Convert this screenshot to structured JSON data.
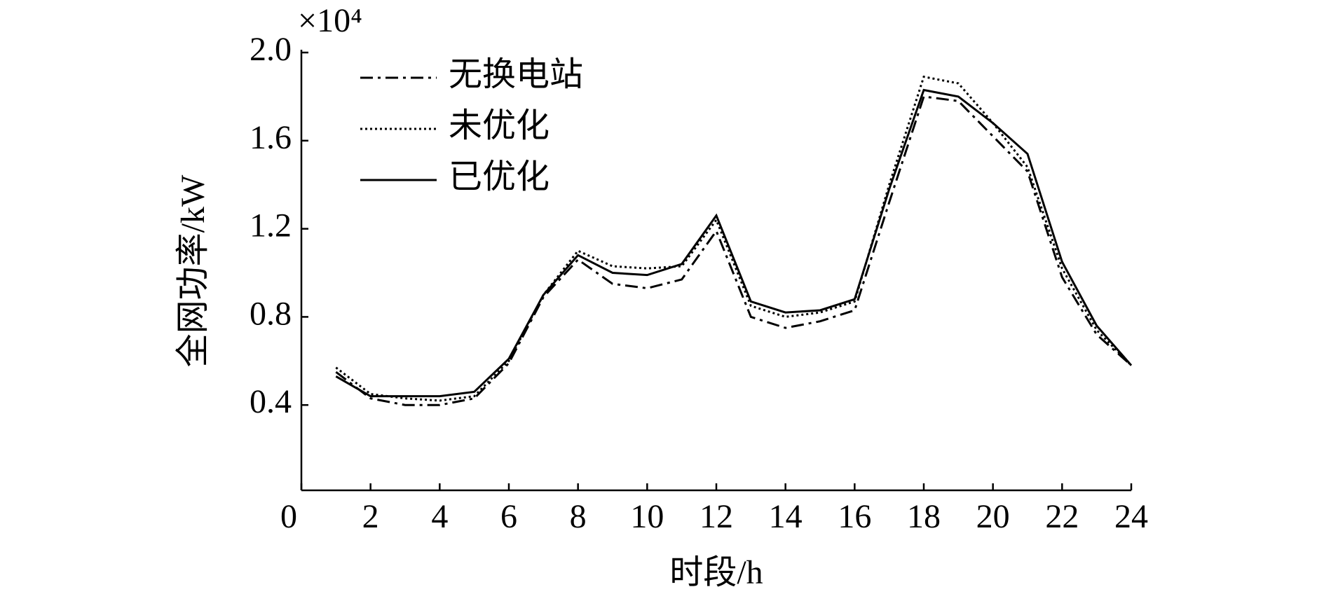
{
  "chart_data": {
    "type": "line",
    "y_multiplier": "×10⁴",
    "x_label": "时段/h",
    "y_label": "全网功率/kW",
    "x": [
      1,
      2,
      3,
      4,
      5,
      6,
      7,
      8,
      9,
      10,
      11,
      12,
      13,
      14,
      15,
      16,
      17,
      18,
      19,
      20,
      21,
      22,
      23,
      24
    ],
    "series": [
      {
        "name": "无换电站",
        "color": "#000000",
        "line_style": "dashdot",
        "values": [
          0.55,
          0.43,
          0.4,
          0.4,
          0.43,
          0.59,
          0.89,
          1.06,
          0.95,
          0.93,
          0.97,
          1.19,
          0.8,
          0.75,
          0.78,
          0.83,
          1.32,
          1.8,
          1.78,
          1.62,
          1.46,
          0.98,
          0.72,
          0.58
        ]
      },
      {
        "name": "未优化",
        "color": "#000000",
        "line_style": "dotted",
        "values": [
          0.57,
          0.45,
          0.43,
          0.42,
          0.44,
          0.6,
          0.9,
          1.1,
          1.03,
          1.02,
          1.03,
          1.24,
          0.85,
          0.8,
          0.82,
          0.87,
          1.4,
          1.89,
          1.86,
          1.68,
          1.48,
          1.02,
          0.74,
          0.58
        ]
      },
      {
        "name": "已优化",
        "color": "#000000",
        "line_style": "solid",
        "values": [
          0.53,
          0.44,
          0.44,
          0.44,
          0.46,
          0.61,
          0.9,
          1.08,
          1.0,
          0.99,
          1.04,
          1.26,
          0.87,
          0.82,
          0.83,
          0.88,
          1.38,
          1.83,
          1.8,
          1.68,
          1.54,
          1.05,
          0.76,
          0.58
        ]
      }
    ],
    "xlim": [
      0,
      24
    ],
    "xticks": [
      0,
      2,
      4,
      6,
      8,
      10,
      12,
      14,
      16,
      18,
      20,
      22,
      24
    ],
    "ylim": [
      0,
      2.0
    ],
    "yticks": [
      0.4,
      0.8,
      1.2,
      1.6,
      {
        "value": 2.0,
        "label": "2.0"
      }
    ],
    "grid": false,
    "legend": "upper left"
  }
}
